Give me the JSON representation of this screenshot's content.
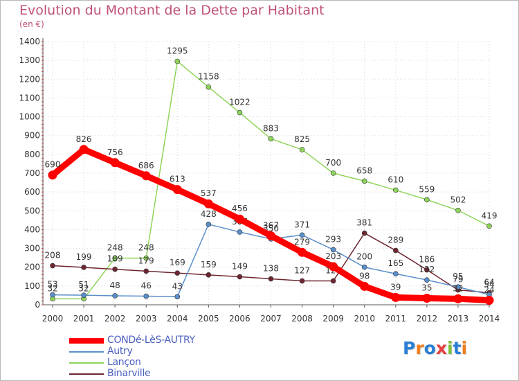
{
  "title": "Evolution du Montant de la Dette par Habitant",
  "subtitle": "(en €)",
  "logo": {
    "text": "Proxiti",
    "letters": [
      "P",
      "r",
      "o",
      "x",
      "i",
      "t",
      "i"
    ],
    "colors": [
      "#2a7fd4",
      "#f07f1b",
      "#2a7fd4",
      "#e63f3f",
      "#7cbf3a",
      "#2a7fd4",
      "#f07f1b"
    ]
  },
  "chart_data": {
    "type": "line",
    "title": "Evolution du Montant de la Dette par Habitant",
    "ylabel": "(en €)",
    "x": [
      "2000",
      "2001",
      "2002",
      "2003",
      "2004",
      "2005",
      "2006",
      "2007",
      "2008",
      "2009",
      "2010",
      "2011",
      "2012",
      "2013",
      "2014"
    ],
    "ylim": [
      0,
      1400
    ],
    "yticks": [
      0,
      100,
      200,
      300,
      400,
      500,
      600,
      700,
      800,
      900,
      1000,
      1100,
      1200,
      1300,
      1400
    ],
    "grid": true,
    "legend": "bottom-left",
    "series": [
      {
        "name": "Lançon",
        "color": "#8fd45a",
        "values": [
          32,
          32,
          248,
          248,
          1295,
          1158,
          1022,
          883,
          825,
          700,
          658,
          610,
          559,
          502,
          419
        ],
        "labels": [
          "32",
          "32",
          "248",
          "248",
          "1295",
          "1158",
          "1022",
          "883",
          "825",
          "700",
          "658",
          "610",
          "559",
          "502",
          "419"
        ]
      },
      {
        "name": "Binarville",
        "color": "#6e2630",
        "values": [
          208,
          199,
          189,
          179,
          169,
          159,
          149,
          138,
          127,
          127,
          381,
          289,
          186,
          79,
          64
        ],
        "labels": [
          "208",
          "199",
          "189",
          "179",
          "169",
          "159",
          "149",
          "138",
          "127",
          "127",
          "381",
          "289",
          "186",
          "79",
          "64"
        ]
      },
      {
        "name": "Autry",
        "color": "#5a8fcc",
        "values": [
          53,
          51,
          48,
          46,
          43,
          428,
          387,
          350,
          371,
          293,
          200,
          165,
          132,
          95,
          54
        ],
        "labels": [
          "53",
          "51",
          "48",
          "46",
          "43",
          "428",
          "387",
          "350",
          "371",
          "293",
          "200",
          "165",
          "132",
          "95",
          "54"
        ]
      },
      {
        "name": "CONDé-LèS-AUTRY",
        "color": "#ff0000",
        "values": [
          690,
          826,
          756,
          686,
          613,
          537,
          456,
          367,
          279,
          203,
          98,
          39,
          35,
          32,
          24
        ],
        "labels": [
          "690",
          "826",
          "756",
          "686",
          "613",
          "537",
          "456",
          "367",
          "279",
          "203",
          "98",
          "39",
          "35",
          "32",
          "24"
        ]
      }
    ],
    "legend_order": [
      "CONDé-LèS-AUTRY",
      "Autry",
      "Lançon",
      "Binarville"
    ]
  }
}
